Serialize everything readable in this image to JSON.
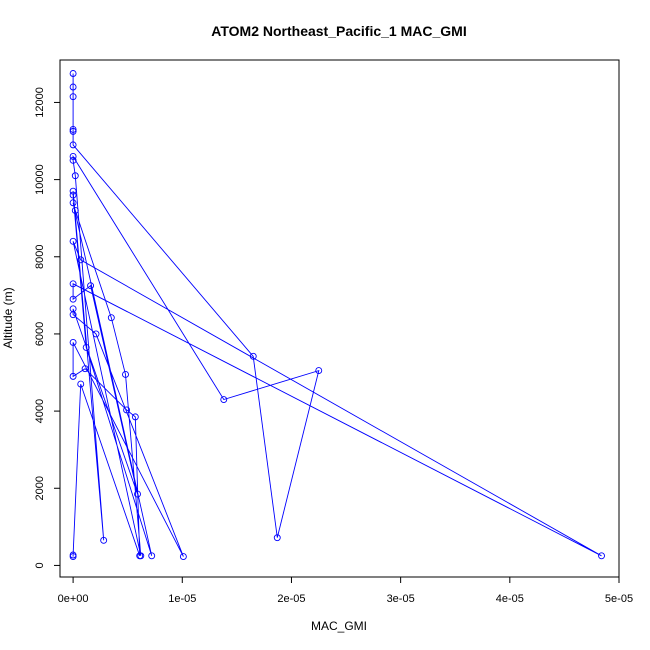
{
  "chart_data": {
    "type": "line",
    "title": "ATOM2 Northeast_Pacific_1 MAC_GMI",
    "xlabel": "MAC_GMI",
    "ylabel": "Altitude (m)",
    "xlim": [
      -1.2e-06,
      5e-05
    ],
    "ylim": [
      -300,
      13100
    ],
    "xticks": [
      0,
      1e-05,
      2e-05,
      3e-05,
      4e-05,
      5e-05
    ],
    "xtick_labels": [
      "0e+00",
      "1e-05",
      "2e-05",
      "3e-05",
      "4e-05",
      "5e-05"
    ],
    "yticks": [
      0,
      2000,
      4000,
      6000,
      8000,
      10000,
      12000
    ],
    "ytick_labels": [
      "0",
      "2000",
      "4000",
      "6000",
      "8000",
      "10000",
      "12000"
    ],
    "grid": false,
    "legend": "none",
    "series": [
      {
        "color": "#0000ff",
        "marker": "open-circle",
        "points": [
          {
            "x": 0.0,
            "y": 12750
          },
          {
            "x": 0.0,
            "y": 12400
          },
          {
            "x": 0.0,
            "y": 12150
          },
          {
            "x": 0.0,
            "y": 11300
          },
          {
            "x": 0.0,
            "y": 11250
          },
          {
            "x": 0.0,
            "y": 10900
          },
          {
            "x": 1.65e-05,
            "y": 5420
          },
          {
            "x": 1.87e-05,
            "y": 720
          },
          {
            "x": 2.25e-05,
            "y": 5050
          },
          {
            "x": 1.38e-05,
            "y": 4300
          },
          {
            "x": 0.0,
            "y": 10600
          },
          {
            "x": 0.0,
            "y": 10500
          },
          {
            "x": 2e-07,
            "y": 10100
          },
          {
            "x": 2.8e-06,
            "y": 650
          },
          {
            "x": 0.0,
            "y": 9700
          },
          {
            "x": 0.0,
            "y": 9600
          },
          {
            "x": 1.2e-06,
            "y": 5650
          },
          {
            "x": 7.2e-06,
            "y": 250
          },
          {
            "x": 0.0,
            "y": 9400
          },
          {
            "x": 2e-07,
            "y": 9200
          },
          {
            "x": 3.5e-06,
            "y": 6420
          },
          {
            "x": 4.8e-06,
            "y": 4950
          },
          {
            "x": 6.2e-06,
            "y": 250
          },
          {
            "x": 0.0,
            "y": 8400
          },
          {
            "x": 7e-07,
            "y": 7920
          },
          {
            "x": 4.84e-05,
            "y": 250
          },
          {
            "x": 0.0,
            "y": 7300
          },
          {
            "x": 0.0,
            "y": 6900
          },
          {
            "x": 1.6e-06,
            "y": 7250
          },
          {
            "x": 5.9e-06,
            "y": 1850
          },
          {
            "x": 0.0,
            "y": 6650
          },
          {
            "x": 0.0,
            "y": 6500
          },
          {
            "x": 2.1e-06,
            "y": 6000
          },
          {
            "x": 1.01e-05,
            "y": 230
          },
          {
            "x": 0.0,
            "y": 5780
          },
          {
            "x": 0.0,
            "y": 4900
          },
          {
            "x": 1.1e-06,
            "y": 5100
          },
          {
            "x": 4.9e-06,
            "y": 4030
          },
          {
            "x": 5.7e-06,
            "y": 3850
          },
          {
            "x": 6.1e-06,
            "y": 250
          },
          {
            "x": 7e-07,
            "y": 4700
          },
          {
            "x": 0.0,
            "y": 270
          },
          {
            "x": 0.0,
            "y": 230
          }
        ]
      }
    ]
  }
}
